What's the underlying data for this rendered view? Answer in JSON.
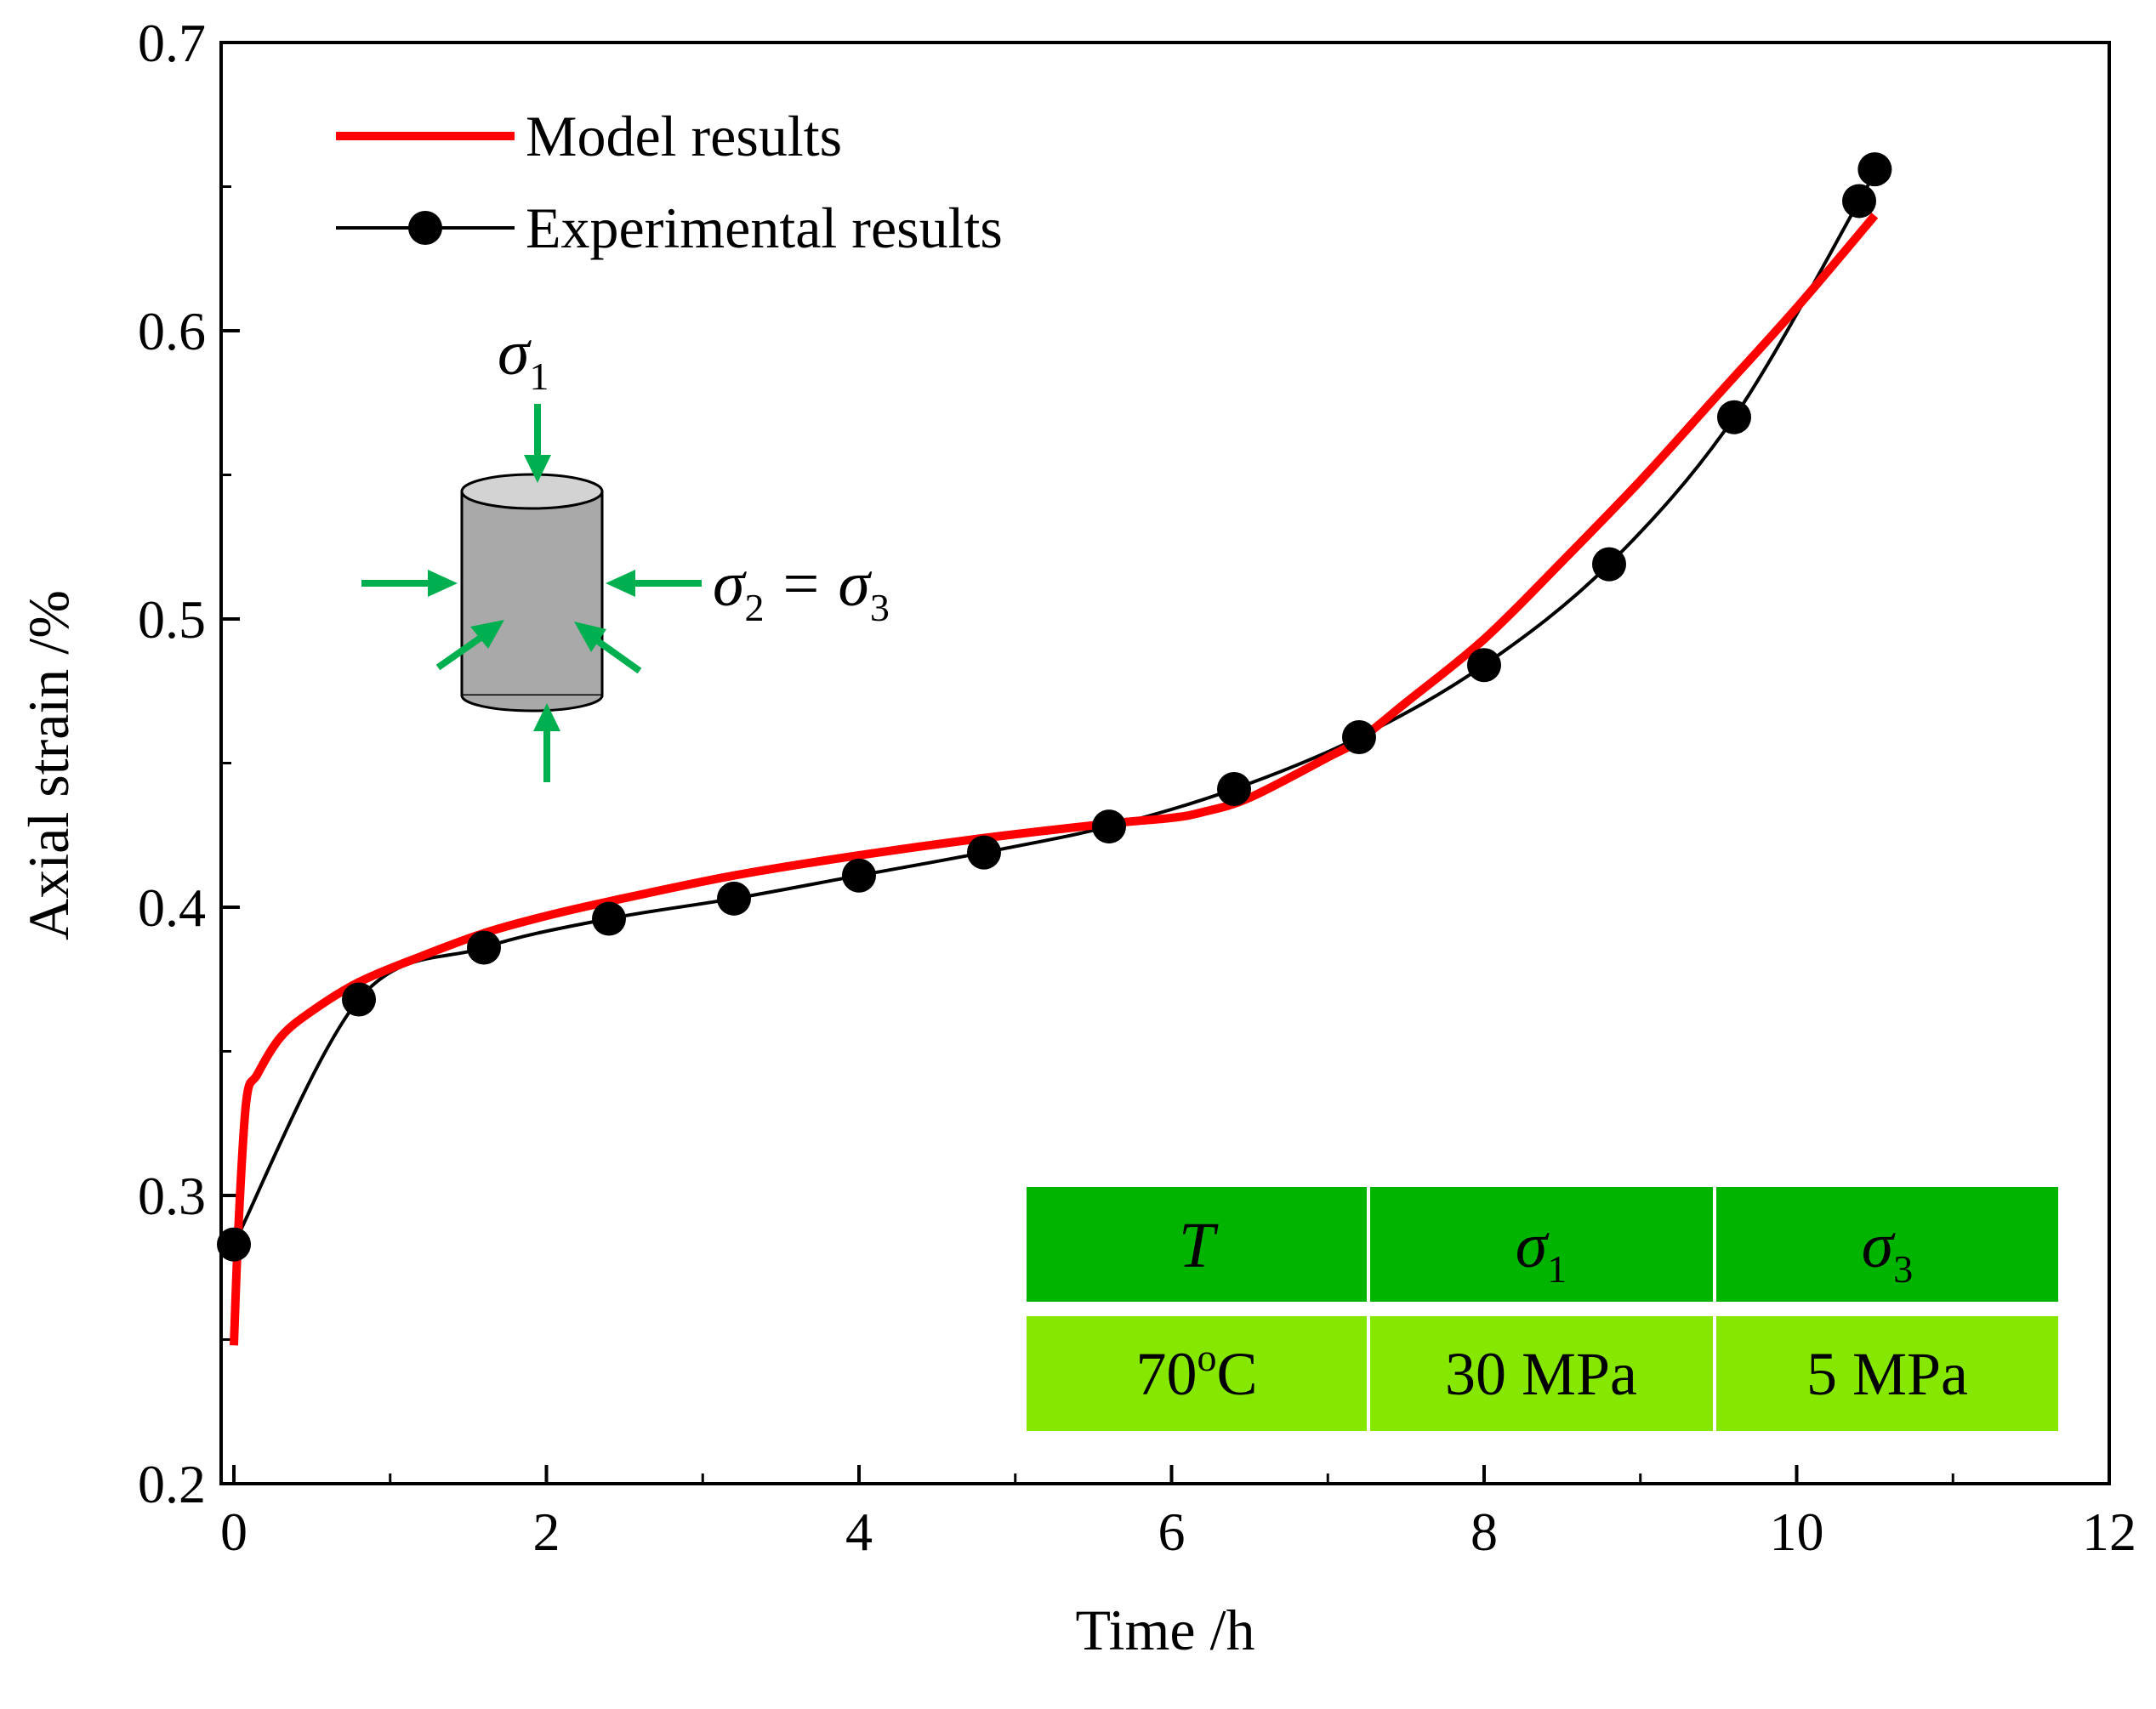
{
  "chart_data": {
    "type": "line",
    "xlabel": "Time /h",
    "ylabel": "Axial strain /%",
    "xlim": [
      0,
      12
    ],
    "ylim": [
      0.2,
      0.7
    ],
    "x_ticks": [
      0,
      2,
      4,
      6,
      8,
      10,
      12
    ],
    "y_ticks": [
      0.2,
      0.3,
      0.4,
      0.5,
      0.6,
      0.7
    ],
    "x_tick_labels": [
      "0",
      "2",
      "4",
      "6",
      "8",
      "10",
      "12"
    ],
    "y_tick_labels": [
      "0.2",
      "0.3",
      "0.4",
      "0.5",
      "0.6",
      "0.7"
    ],
    "grid": false,
    "legend_position": "top-left",
    "series": [
      {
        "name": "Model results",
        "color": "#ff0000",
        "marker": "none",
        "x": [
          0,
          0.03,
          0.08,
          0.15,
          0.3,
          0.5,
          0.8,
          1.2,
          1.6,
          2.0,
          2.4,
          3.2,
          4.0,
          4.8,
          5.6,
          6.0,
          6.2,
          6.5,
          7.0,
          7.2,
          7.5,
          8.0,
          8.5,
          9.0,
          9.5,
          10.0,
          10.5
        ],
        "values": [
          0.248,
          0.29,
          0.333,
          0.342,
          0.355,
          0.364,
          0.374,
          0.383,
          0.391,
          0.397,
          0.402,
          0.411,
          0.418,
          0.424,
          0.429,
          0.431,
          0.433,
          0.438,
          0.452,
          0.458,
          0.471,
          0.493,
          0.52,
          0.548,
          0.578,
          0.608,
          0.64
        ]
      },
      {
        "name": "Experimental results",
        "color": "#000000",
        "marker": "circle",
        "x": [
          0,
          0.8,
          1.6,
          2.4,
          3.2,
          4.0,
          4.8,
          5.6,
          6.4,
          7.2,
          8.0,
          8.8,
          9.6,
          10.4,
          10.5
        ],
        "values": [
          0.283,
          0.368,
          0.386,
          0.396,
          0.403,
          0.411,
          0.419,
          0.428,
          0.441,
          0.459,
          0.484,
          0.519,
          0.57,
          0.645,
          0.656
        ]
      }
    ],
    "annotations": {
      "load_labels": {
        "axial_symbol": "σ",
        "axial_sub": "1",
        "lateral_symbol": "σ",
        "lateral_sub": "2",
        "equals": "=",
        "lateral_symbol2": "σ",
        "lateral_sub2": "3"
      },
      "table": {
        "headers": [
          {
            "symbol": "T",
            "sub": ""
          },
          {
            "symbol": "σ",
            "sub": "1"
          },
          {
            "symbol": "σ",
            "sub": "3"
          }
        ],
        "values": [
          {
            "main": "70",
            "sup": "o",
            "tail": "C"
          },
          {
            "main": "30 MPa",
            "sup": "",
            "tail": ""
          },
          {
            "main": "5 MPa",
            "sup": "",
            "tail": ""
          }
        ],
        "header_color": "#00b400",
        "value_color": "#86e800"
      },
      "arrow_color": "#00b050",
      "specimen_color": "#a9a9a9",
      "specimen_top_color": "#d3d3d3"
    }
  }
}
